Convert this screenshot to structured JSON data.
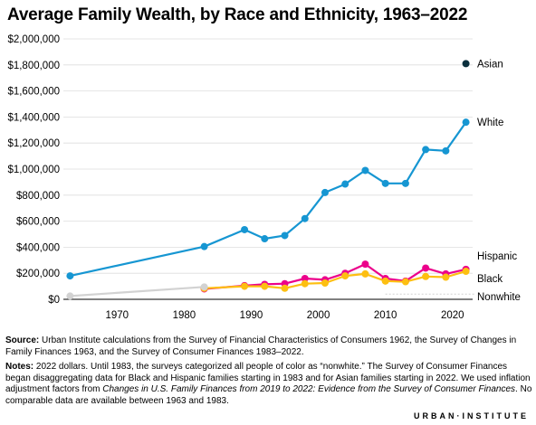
{
  "title": "Average Family Wealth, by Race and Ethnicity, 1963–2022",
  "source": {
    "label": "Source:",
    "text": "Urban Institute calculations from the Survey of Financial Characteristics of Consumers 1962, the Survey of Changes in Family Finances 1963, and the Survey of Consumer Finances 1983–2022."
  },
  "notes": {
    "label": "Notes:",
    "text_1": "2022 dollars. Until 1983, the surveys categorized all people of color as “nonwhite.” The Survey of Consumer Finances began disaggregating data for Black and Hispanic families starting in 1983 and for Asian families starting in 2022. We used inflation adjustment factors from ",
    "italic": "Changes in U.S. Family Finances from 2019 to 2022: Evidence from the Survey of Consumer Finances",
    "text_2": ". No comparable data are available between 1963 and 1983."
  },
  "footer": {
    "logo": "URBAN·INSTITUTE"
  },
  "chart_data": {
    "type": "line",
    "title": "Average Family Wealth, by Race and Ethnicity, 1963–2022",
    "xlabel": "",
    "ylabel": "",
    "xlim": [
      1962,
      2023
    ],
    "ylim": [
      0,
      2000000
    ],
    "x_ticks": [
      1970,
      1980,
      1990,
      2000,
      2010,
      2020
    ],
    "y_ticks": [
      0,
      200000,
      400000,
      600000,
      800000,
      1000000,
      1200000,
      1400000,
      1600000,
      1800000,
      2000000
    ],
    "y_tick_labels": [
      "$0",
      "$200,000",
      "$400,000",
      "$600,000",
      "$800,000",
      "$1,000,000",
      "$1,200,000",
      "$1,400,000",
      "$1,600,000",
      "$1,800,000",
      "$2,000,000"
    ],
    "grid": true,
    "legend": "direct labels at right end of lines",
    "series": [
      {
        "name": "Asian",
        "color": "#0a2f3d",
        "points": [
          [
            2022,
            1810000
          ]
        ]
      },
      {
        "name": "White",
        "color": "#1696d2",
        "points": [
          [
            1963,
            180000
          ],
          [
            1983,
            405000
          ],
          [
            1989,
            535000
          ],
          [
            1992,
            465000
          ],
          [
            1995,
            490000
          ],
          [
            1998,
            620000
          ],
          [
            2001,
            820000
          ],
          [
            2004,
            885000
          ],
          [
            2007,
            990000
          ],
          [
            2010,
            890000
          ],
          [
            2013,
            890000
          ],
          [
            2016,
            1150000
          ],
          [
            2019,
            1140000
          ],
          [
            2022,
            1360000
          ]
        ]
      },
      {
        "name": "Hispanic",
        "color": "#ec008b",
        "points": [
          [
            1983,
            80000
          ],
          [
            1989,
            105000
          ],
          [
            1992,
            115000
          ],
          [
            1995,
            120000
          ],
          [
            1998,
            160000
          ],
          [
            2001,
            150000
          ],
          [
            2004,
            200000
          ],
          [
            2007,
            270000
          ],
          [
            2010,
            160000
          ],
          [
            2013,
            140000
          ],
          [
            2016,
            240000
          ],
          [
            2019,
            195000
          ],
          [
            2022,
            230000
          ]
        ]
      },
      {
        "name": "Black",
        "color": "#fdbf11",
        "points": [
          [
            1983,
            85000
          ],
          [
            1989,
            100000
          ],
          [
            1992,
            100000
          ],
          [
            1995,
            85000
          ],
          [
            1998,
            120000
          ],
          [
            2001,
            125000
          ],
          [
            2004,
            180000
          ],
          [
            2007,
            195000
          ],
          [
            2010,
            140000
          ],
          [
            2013,
            135000
          ],
          [
            2016,
            175000
          ],
          [
            2019,
            170000
          ],
          [
            2022,
            215000
          ]
        ]
      },
      {
        "name": "Nonwhite",
        "color": "#d2d2d2",
        "points": [
          [
            1963,
            25000
          ],
          [
            1983,
            95000
          ]
        ]
      }
    ]
  }
}
